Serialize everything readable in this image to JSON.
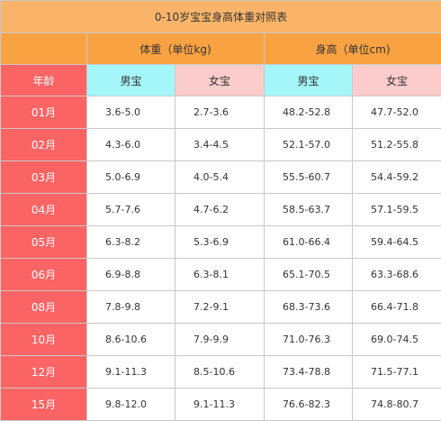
{
  "title": "0-10岁宝宝身高体重对照表",
  "groups": {
    "weight": "体重（单位kg)",
    "height": "身高（单位cm)"
  },
  "subheaders": {
    "age": "年龄",
    "weight_boy": "男宝",
    "weight_girl": "女宝",
    "height_boy": "男宝",
    "height_girl": "女宝"
  },
  "rows": [
    {
      "age": "01月",
      "weight_boy": "3.6-5.0",
      "weight_girl": "2.7-3.6",
      "height_boy": "48.2-52.8",
      "height_girl": "47.7-52.0"
    },
    {
      "age": "02月",
      "weight_boy": "4.3-6.0",
      "weight_girl": "3.4-4.5",
      "height_boy": "52.1-57.0",
      "height_girl": "51.2-55.8"
    },
    {
      "age": "03月",
      "weight_boy": "5.0-6.9",
      "weight_girl": "4.0-5.4",
      "height_boy": "55.5-60.7",
      "height_girl": "54.4-59.2"
    },
    {
      "age": "04月",
      "weight_boy": "5.7-7.6",
      "weight_girl": "4.7-6.2",
      "height_boy": "58.5-63.7",
      "height_girl": "57.1-59.5"
    },
    {
      "age": "05月",
      "weight_boy": "6.3-8.2",
      "weight_girl": "5.3-6.9",
      "height_boy": "61.0-66.4",
      "height_girl": "59.4-64.5"
    },
    {
      "age": "06月",
      "weight_boy": "6.9-8.8",
      "weight_girl": "6.3-8.1",
      "height_boy": "65.1-70.5",
      "height_girl": "63.3-68.6"
    },
    {
      "age": "08月",
      "weight_boy": "7.8-9.8",
      "weight_girl": "7.2-9.1",
      "height_boy": "68.3-73.6",
      "height_girl": "66.4-71.8"
    },
    {
      "age": "10月",
      "weight_boy": "8.6-10.6",
      "weight_girl": "7.9-9.9",
      "height_boy": "71.0-76.3",
      "height_girl": "69.0-74.5"
    },
    {
      "age": "12月",
      "weight_boy": "9.1-11.3",
      "weight_girl": "8.5-10.6",
      "height_boy": "73.4-78.8",
      "height_girl": "71.5-77.1"
    },
    {
      "age": "15月",
      "weight_boy": "9.8-12.0",
      "weight_girl": "9.1-11.3",
      "height_boy": "76.6-82.3",
      "height_girl": "74.8-80.7"
    }
  ],
  "colors": {
    "title_bg": "#fab469",
    "group_bg": "#f9a242",
    "age_bg": "#fb6464",
    "boy_bg": "#a4f6f8",
    "girl_bg": "#fccccc"
  }
}
